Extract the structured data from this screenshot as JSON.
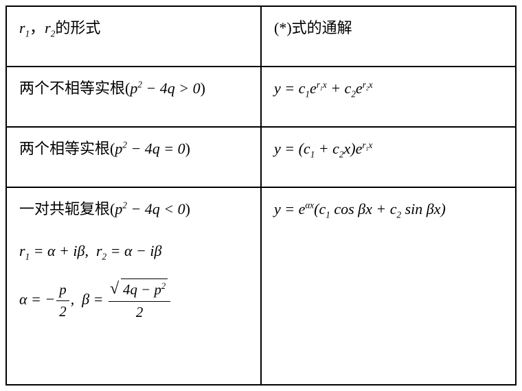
{
  "table": {
    "border_color": "#000000",
    "background_color": "#ffffff",
    "text_color": "#000000",
    "font_family": "Times New Roman, SimSun, serif",
    "font_size_pt": 16,
    "columns": [
      "形式列",
      "通解列"
    ],
    "column_widths": [
      "50%",
      "50%"
    ],
    "rows": [
      {
        "left_text_prefix": "r",
        "left_sub1": "1",
        "left_comma": "，",
        "left_text_prefix2": "r",
        "left_sub2": "2",
        "left_suffix": "的形式",
        "right_text": "(*)式的通解"
      },
      {
        "left_label": "两个不相等实根",
        "left_cond_open": "(",
        "left_cond": "p² − 4q > 0",
        "left_cond_close": ")",
        "right_eq": "y = c₁eʳ¹ˣ + c₂eʳ²ˣ"
      },
      {
        "left_label": "两个相等实根",
        "left_cond_open": "(",
        "left_cond": "p² − 4q = 0",
        "left_cond_close": ")",
        "right_eq": "y = (c₁ + c₂x)eʳ¹ˣ"
      },
      {
        "left_label": "一对共轭复根",
        "left_cond_open": "(",
        "left_cond": "p² − 4q < 0",
        "left_cond_close": ")",
        "left_line2": "r₁ = α + iβ,  r₂ = α − iβ",
        "left_line3_alpha": "α = −p/2,",
        "left_line3_beta": "β = √(4q−p²)/2",
        "right_eq": "y = eᵅˣ(c₁ cos βx + c₂ sin βx)"
      }
    ]
  }
}
